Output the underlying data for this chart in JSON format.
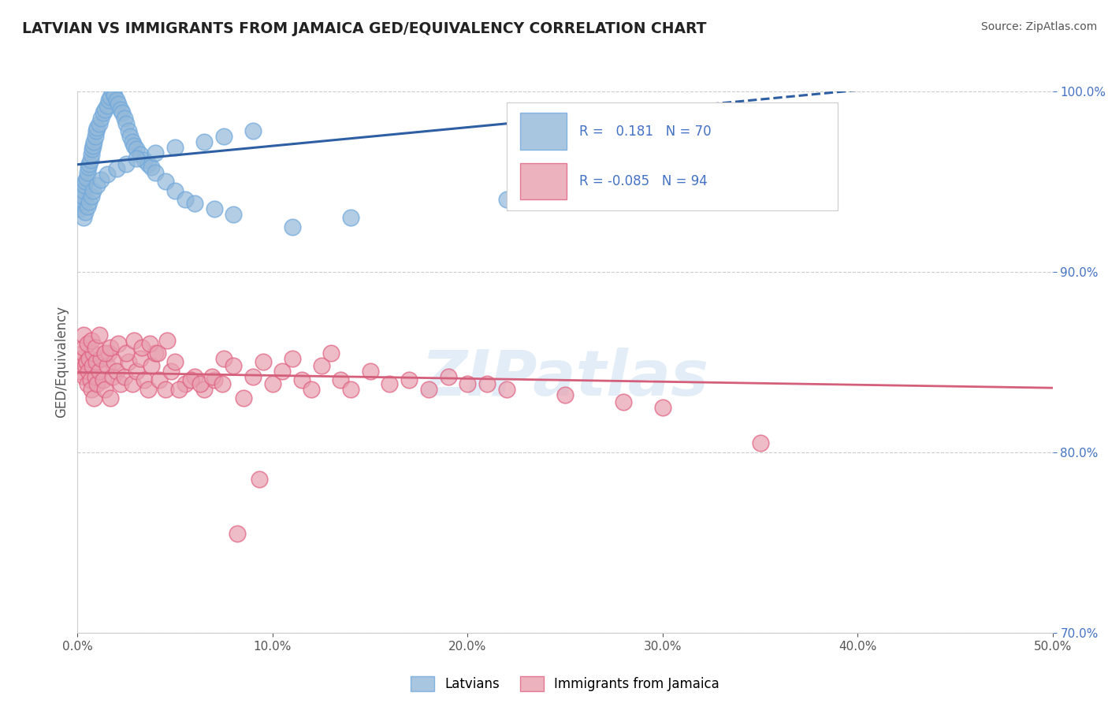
{
  "title": "LATVIAN VS IMMIGRANTS FROM JAMAICA GED/EQUIVALENCY CORRELATION CHART",
  "source": "Source: ZipAtlas.com",
  "ylabel": "GED/Equivalency",
  "x_min": 0.0,
  "x_max": 50.0,
  "y_min": 70.0,
  "y_max": 100.0,
  "x_ticks": [
    0.0,
    10.0,
    20.0,
    30.0,
    40.0,
    50.0
  ],
  "y_ticks": [
    70.0,
    80.0,
    90.0,
    100.0
  ],
  "blue_color": "#92b8d9",
  "pink_color": "#e8a0b0",
  "blue_edge_color": "#6fa8dc",
  "pink_edge_color": "#e06080",
  "blue_line_color": "#2e5fa3",
  "pink_line_color": "#d45f7a",
  "legend_label_blue": "Latvians",
  "legend_label_pink": "Immigrants from Jamaica",
  "R_blue": 0.181,
  "N_blue": 70,
  "R_pink": -0.085,
  "N_pink": 94,
  "watermark": "ZIPatlas",
  "blue_line_x_solid_end": 22.0,
  "blue_scatter_x": [
    0.1,
    0.15,
    0.2,
    0.25,
    0.3,
    0.35,
    0.4,
    0.45,
    0.5,
    0.55,
    0.6,
    0.65,
    0.7,
    0.75,
    0.8,
    0.85,
    0.9,
    0.95,
    1.0,
    1.1,
    1.2,
    1.3,
    1.4,
    1.5,
    1.6,
    1.7,
    1.8,
    1.9,
    2.0,
    2.1,
    2.2,
    2.3,
    2.4,
    2.5,
    2.6,
    2.7,
    2.8,
    2.9,
    3.0,
    3.2,
    3.4,
    3.6,
    3.8,
    4.0,
    4.5,
    5.0,
    5.5,
    6.0,
    7.0,
    8.0,
    0.3,
    0.4,
    0.5,
    0.6,
    0.7,
    0.8,
    1.0,
    1.2,
    1.5,
    2.0,
    2.5,
    3.0,
    4.0,
    5.0,
    6.5,
    7.5,
    9.0,
    11.0,
    22.0,
    14.0
  ],
  "blue_scatter_y": [
    93.5,
    93.8,
    94.0,
    94.2,
    94.5,
    94.8,
    95.0,
    95.2,
    95.5,
    95.8,
    96.0,
    96.2,
    96.5,
    96.8,
    97.0,
    97.2,
    97.5,
    97.8,
    98.0,
    98.2,
    98.5,
    98.8,
    99.0,
    99.2,
    99.5,
    99.7,
    100.0,
    99.8,
    99.5,
    99.3,
    99.0,
    98.8,
    98.5,
    98.2,
    97.8,
    97.5,
    97.2,
    97.0,
    96.8,
    96.5,
    96.2,
    96.0,
    95.8,
    95.5,
    95.0,
    94.5,
    94.0,
    93.8,
    93.5,
    93.2,
    93.0,
    93.3,
    93.6,
    93.9,
    94.2,
    94.5,
    94.8,
    95.1,
    95.4,
    95.7,
    96.0,
    96.3,
    96.6,
    96.9,
    97.2,
    97.5,
    97.8,
    92.5,
    94.0,
    93.0
  ],
  "pink_scatter_x": [
    0.1,
    0.15,
    0.2,
    0.25,
    0.3,
    0.35,
    0.4,
    0.45,
    0.5,
    0.55,
    0.6,
    0.65,
    0.7,
    0.75,
    0.8,
    0.85,
    0.9,
    0.95,
    1.0,
    1.1,
    1.2,
    1.3,
    1.4,
    1.5,
    1.6,
    1.7,
    1.8,
    1.9,
    2.0,
    2.2,
    2.4,
    2.6,
    2.8,
    3.0,
    3.2,
    3.4,
    3.6,
    3.8,
    4.0,
    4.2,
    4.5,
    4.8,
    5.0,
    5.5,
    6.0,
    6.5,
    7.0,
    7.5,
    8.0,
    8.5,
    9.0,
    9.5,
    10.0,
    10.5,
    11.0,
    11.5,
    12.0,
    12.5,
    13.0,
    13.5,
    14.0,
    15.0,
    16.0,
    17.0,
    18.0,
    19.0,
    20.0,
    22.0,
    25.0,
    28.0,
    30.0,
    35.0,
    0.3,
    0.5,
    0.7,
    0.9,
    1.1,
    1.4,
    1.7,
    2.1,
    2.5,
    2.9,
    3.3,
    3.7,
    4.1,
    4.6,
    5.2,
    5.8,
    6.3,
    6.9,
    7.4,
    8.2,
    9.3,
    21.0
  ],
  "pink_scatter_y": [
    84.5,
    84.8,
    85.2,
    85.5,
    85.8,
    84.2,
    84.8,
    85.0,
    83.8,
    84.5,
    85.2,
    84.0,
    83.5,
    84.8,
    85.5,
    83.0,
    84.2,
    85.0,
    83.8,
    84.5,
    85.2,
    84.0,
    83.5,
    84.8,
    85.5,
    83.0,
    84.2,
    85.0,
    84.5,
    83.8,
    84.2,
    85.0,
    83.8,
    84.5,
    85.2,
    84.0,
    83.5,
    84.8,
    85.5,
    84.0,
    83.5,
    84.5,
    85.0,
    83.8,
    84.2,
    83.5,
    84.0,
    85.2,
    84.8,
    83.0,
    84.2,
    85.0,
    83.8,
    84.5,
    85.2,
    84.0,
    83.5,
    84.8,
    85.5,
    84.0,
    83.5,
    84.5,
    83.8,
    84.0,
    83.5,
    84.2,
    83.8,
    83.5,
    83.2,
    82.8,
    82.5,
    80.5,
    86.5,
    86.0,
    86.2,
    85.8,
    86.5,
    85.5,
    85.8,
    86.0,
    85.5,
    86.2,
    85.8,
    86.0,
    85.5,
    86.2,
    83.5,
    84.0,
    83.8,
    84.2,
    83.8,
    75.5,
    78.5,
    83.8
  ]
}
